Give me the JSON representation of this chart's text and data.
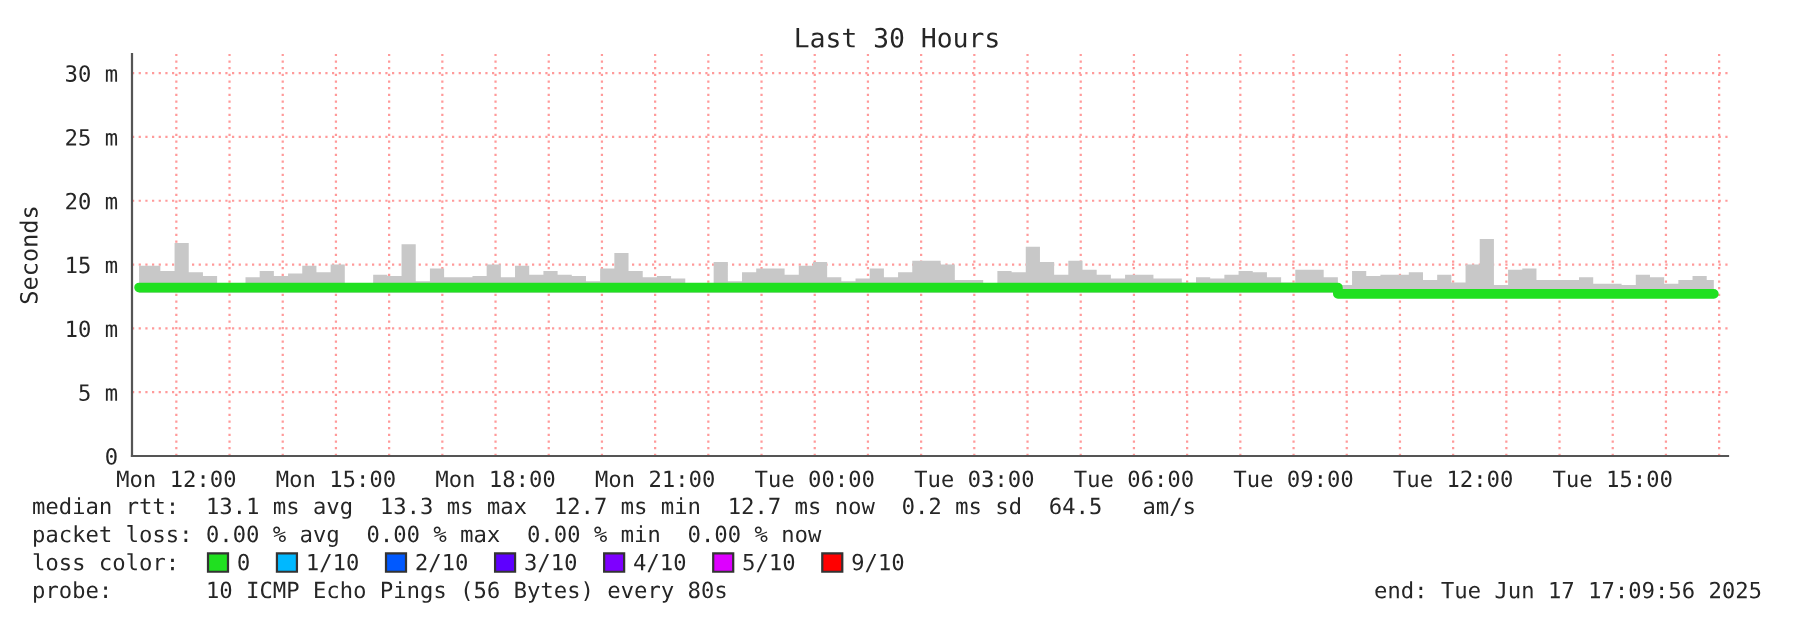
{
  "chart_data": {
    "type": "step",
    "title": "Last 30 Hours",
    "ylabel": "Seconds",
    "legend_title": "loss color:",
    "xlim": [
      "2025-06-16T11:10",
      "2025-06-17T17:10"
    ],
    "ylim": [
      0,
      31.5
    ],
    "xticks": [
      {
        "value": "2025-06-16T12:00",
        "label": "Mon 12:00"
      },
      {
        "value": "2025-06-16T13:00",
        "label": null
      },
      {
        "value": "2025-06-16T14:00",
        "label": null
      },
      {
        "value": "2025-06-16T15:00",
        "label": "Mon 15:00"
      },
      {
        "value": "2025-06-16T16:00",
        "label": null
      },
      {
        "value": "2025-06-16T17:00",
        "label": null
      },
      {
        "value": "2025-06-16T18:00",
        "label": "Mon 18:00"
      },
      {
        "value": "2025-06-16T19:00",
        "label": null
      },
      {
        "value": "2025-06-16T20:00",
        "label": null
      },
      {
        "value": "2025-06-16T21:00",
        "label": "Mon 21:00"
      },
      {
        "value": "2025-06-16T22:00",
        "label": null
      },
      {
        "value": "2025-06-16T23:00",
        "label": null
      },
      {
        "value": "2025-06-17T00:00",
        "label": "Tue 00:00"
      },
      {
        "value": "2025-06-17T01:00",
        "label": null
      },
      {
        "value": "2025-06-17T02:00",
        "label": null
      },
      {
        "value": "2025-06-17T03:00",
        "label": "Tue 03:00"
      },
      {
        "value": "2025-06-17T04:00",
        "label": null
      },
      {
        "value": "2025-06-17T05:00",
        "label": null
      },
      {
        "value": "2025-06-17T06:00",
        "label": "Tue 06:00"
      },
      {
        "value": "2025-06-17T07:00",
        "label": null
      },
      {
        "value": "2025-06-17T08:00",
        "label": null
      },
      {
        "value": "2025-06-17T09:00",
        "label": "Tue 09:00"
      },
      {
        "value": "2025-06-17T10:00",
        "label": null
      },
      {
        "value": "2025-06-17T11:00",
        "label": null
      },
      {
        "value": "2025-06-17T12:00",
        "label": "Tue 12:00"
      },
      {
        "value": "2025-06-17T13:00",
        "label": null
      },
      {
        "value": "2025-06-17T14:00",
        "label": null
      },
      {
        "value": "2025-06-17T15:00",
        "label": "Tue 15:00"
      },
      {
        "value": "2025-06-17T16:00",
        "label": null
      },
      {
        "value": "2025-06-17T17:00",
        "label": null
      }
    ],
    "yticks": [
      0,
      {
        "value": 5,
        "label": "5 m"
      },
      {
        "value": 10,
        "label": "10 m"
      },
      {
        "value": 15,
        "label": "15 m"
      },
      {
        "value": 20,
        "label": "20 m"
      },
      {
        "value": 25,
        "label": "25 m"
      },
      {
        "value": 30,
        "label": "30 m"
      }
    ],
    "grid": true,
    "legend": "bottom",
    "x": [
      "2025-06-16T11:18",
      "2025-06-16T11:34",
      "2025-06-16T11:50",
      "2025-06-16T12:06",
      "2025-06-16T12:22",
      "2025-06-16T12:38",
      "2025-06-16T12:54",
      "2025-06-16T13:10",
      "2025-06-16T13:26",
      "2025-06-16T13:42",
      "2025-06-16T13:58",
      "2025-06-16T14:14",
      "2025-06-16T14:30",
      "2025-06-16T14:46",
      "2025-06-16T15:02",
      "2025-06-16T15:18",
      "2025-06-16T15:34",
      "2025-06-16T15:50",
      "2025-06-16T16:06",
      "2025-06-16T16:22",
      "2025-06-16T16:38",
      "2025-06-16T16:54",
      "2025-06-16T17:10",
      "2025-06-16T17:26",
      "2025-06-16T17:42",
      "2025-06-16T17:58",
      "2025-06-16T18:14",
      "2025-06-16T18:30",
      "2025-06-16T18:46",
      "2025-06-16T19:02",
      "2025-06-16T19:18",
      "2025-06-16T19:34",
      "2025-06-16T19:50",
      "2025-06-16T20:06",
      "2025-06-16T20:22",
      "2025-06-16T20:38",
      "2025-06-16T20:54",
      "2025-06-16T21:10",
      "2025-06-16T21:26",
      "2025-06-16T21:42",
      "2025-06-16T21:58",
      "2025-06-16T22:14",
      "2025-06-16T22:30",
      "2025-06-16T22:46",
      "2025-06-16T23:02",
      "2025-06-16T23:18",
      "2025-06-16T23:34",
      "2025-06-16T23:50",
      "2025-06-17T00:06",
      "2025-06-17T00:22",
      "2025-06-17T00:38",
      "2025-06-17T00:54",
      "2025-06-17T01:10",
      "2025-06-17T01:26",
      "2025-06-17T01:42",
      "2025-06-17T01:58",
      "2025-06-17T02:14",
      "2025-06-17T02:30",
      "2025-06-17T02:46",
      "2025-06-17T03:02",
      "2025-06-17T03:18",
      "2025-06-17T03:34",
      "2025-06-17T03:50",
      "2025-06-17T04:06",
      "2025-06-17T04:22",
      "2025-06-17T04:38",
      "2025-06-17T04:54",
      "2025-06-17T05:10",
      "2025-06-17T05:26",
      "2025-06-17T05:42",
      "2025-06-17T05:58",
      "2025-06-17T06:14",
      "2025-06-17T06:30",
      "2025-06-17T06:46",
      "2025-06-17T07:02",
      "2025-06-17T07:18",
      "2025-06-17T07:34",
      "2025-06-17T07:50",
      "2025-06-17T08:06",
      "2025-06-17T08:22",
      "2025-06-17T08:38",
      "2025-06-17T08:54",
      "2025-06-17T09:10",
      "2025-06-17T09:26",
      "2025-06-17T09:42",
      "2025-06-17T09:58",
      "2025-06-17T10:14",
      "2025-06-17T10:30",
      "2025-06-17T10:46",
      "2025-06-17T11:02",
      "2025-06-17T11:18",
      "2025-06-17T11:34",
      "2025-06-17T11:50",
      "2025-06-17T12:06",
      "2025-06-17T12:22",
      "2025-06-17T12:38",
      "2025-06-17T12:54",
      "2025-06-17T13:10",
      "2025-06-17T13:26",
      "2025-06-17T13:42",
      "2025-06-17T13:58",
      "2025-06-17T14:14",
      "2025-06-17T14:30",
      "2025-06-17T14:46",
      "2025-06-17T15:02",
      "2025-06-17T15:18",
      "2025-06-17T15:34",
      "2025-06-17T15:50",
      "2025-06-17T16:06",
      "2025-06-17T16:22",
      "2025-06-17T16:38",
      "2025-06-17T16:54"
    ],
    "series": [
      {
        "name": "0",
        "color": "#20e020",
        "values": [
          13.2,
          13.2,
          13.2,
          13.2,
          13.2,
          13.2,
          13.2,
          13.2,
          13.2,
          13.2,
          13.2,
          13.2,
          13.2,
          13.2,
          13.2,
          13.2,
          13.2,
          13.2,
          13.2,
          13.2,
          13.2,
          13.2,
          13.2,
          13.2,
          13.2,
          13.2,
          13.2,
          13.2,
          13.2,
          13.2,
          13.2,
          13.2,
          13.2,
          13.2,
          13.2,
          13.2,
          13.2,
          13.2,
          13.2,
          13.2,
          13.2,
          13.2,
          13.2,
          13.2,
          13.2,
          13.2,
          13.2,
          13.2,
          13.2,
          13.2,
          13.2,
          13.2,
          13.2,
          13.2,
          13.2,
          13.2,
          13.2,
          13.2,
          13.2,
          13.2,
          13.2,
          13.2,
          13.2,
          13.2,
          13.2,
          13.2,
          13.2,
          13.2,
          13.2,
          13.2,
          13.2,
          13.2,
          13.2,
          13.2,
          13.2,
          13.2,
          13.2,
          13.2,
          13.2,
          13.2,
          13.2,
          13.2,
          13.2,
          13.2,
          13.2,
          12.7,
          12.7,
          12.7,
          12.7,
          12.7,
          12.7,
          12.7,
          12.7,
          12.7,
          12.7,
          12.7,
          12.7,
          12.7,
          12.7,
          12.7,
          12.7,
          12.7,
          12.7,
          12.7,
          12.7,
          12.7,
          12.7,
          12.7,
          12.7,
          12.7,
          12.7,
          12.7
        ],
        "lower": [
          12.8,
          12.8,
          12.8,
          12.8,
          12.8,
          12.8,
          12.8,
          12.8,
          12.8,
          12.8,
          12.8,
          12.8,
          12.8,
          12.8,
          12.8,
          12.8,
          12.8,
          12.8,
          12.8,
          12.8,
          12.8,
          12.8,
          12.8,
          12.8,
          12.8,
          12.8,
          12.8,
          12.8,
          12.8,
          12.8,
          12.8,
          12.8,
          12.8,
          12.8,
          12.8,
          12.8,
          12.8,
          12.8,
          12.8,
          12.8,
          12.8,
          12.8,
          12.8,
          12.8,
          12.8,
          12.8,
          12.8,
          12.8,
          12.8,
          12.8,
          12.8,
          12.8,
          12.8,
          12.8,
          12.8,
          12.8,
          12.8,
          12.8,
          12.8,
          12.8,
          12.8,
          12.8,
          12.8,
          12.8,
          12.8,
          12.8,
          12.8,
          12.8,
          12.8,
          12.8,
          12.8,
          12.8,
          12.8,
          12.8,
          12.8,
          12.8,
          12.8,
          12.8,
          12.8,
          12.8,
          12.8,
          12.8,
          12.8,
          12.8,
          12.8,
          12.5,
          12.5,
          12.5,
          12.5,
          12.5,
          12.5,
          12.5,
          12.5,
          12.5,
          12.5,
          12.5,
          12.5,
          12.5,
          12.5,
          12.5,
          12.5,
          12.5,
          12.5,
          12.5,
          12.5,
          12.5,
          12.5,
          12.5,
          12.5,
          12.5,
          12.5,
          12.5
        ],
        "upper": [
          14.9,
          14.9,
          14.5,
          16.7,
          14.4,
          14.1,
          13.5,
          13.5,
          14.0,
          14.5,
          14.1,
          14.3,
          14.9,
          14.4,
          15.0,
          13.4,
          13.4,
          14.2,
          14.1,
          16.6,
          13.7,
          14.7,
          14.0,
          14.0,
          14.1,
          15.0,
          14.0,
          14.9,
          14.2,
          14.5,
          14.2,
          14.1,
          13.7,
          14.7,
          15.9,
          14.5,
          14.0,
          14.1,
          13.9,
          13.4,
          13.4,
          15.2,
          13.7,
          14.4,
          14.7,
          14.7,
          14.2,
          14.9,
          15.2,
          14.0,
          13.7,
          13.9,
          14.7,
          14.0,
          14.4,
          15.3,
          15.3,
          15.0,
          13.8,
          13.8,
          13.4,
          14.5,
          14.4,
          16.4,
          15.2,
          14.2,
          15.3,
          14.6,
          14.2,
          13.9,
          14.2,
          14.2,
          13.9,
          13.9,
          13.6,
          14.0,
          13.9,
          14.2,
          14.5,
          14.4,
          14.0,
          13.6,
          14.6,
          14.6,
          14.0,
          13.4,
          14.5,
          14.1,
          14.2,
          14.2,
          14.4,
          13.8,
          14.2,
          13.6,
          15.0,
          17.0,
          13.4,
          14.6,
          14.7,
          13.8,
          13.8,
          13.8,
          14.0,
          13.5,
          13.5,
          13.4,
          14.2,
          14.0,
          13.5,
          13.8,
          14.1,
          13.8
        ]
      },
      {
        "name": "1/10",
        "color": "#00b8ff",
        "values": [
          null,
          null,
          null,
          null,
          null,
          null,
          null,
          null,
          null,
          null,
          null,
          null,
          null,
          null,
          null,
          null,
          null,
          null,
          null,
          null,
          null,
          null,
          null,
          null,
          null,
          null,
          null,
          null,
          null,
          null,
          null,
          null,
          null,
          null,
          null,
          null,
          null,
          null,
          null,
          null,
          null,
          null,
          null,
          null,
          null,
          null,
          null,
          null,
          null,
          null,
          null,
          null,
          null,
          null,
          null,
          null,
          null,
          null,
          null,
          null,
          null,
          null,
          null,
          null,
          null,
          null,
          null,
          null,
          null,
          null,
          null,
          null,
          null,
          null,
          null,
          null,
          null,
          null,
          null,
          null,
          null,
          null,
          null,
          null,
          null,
          null,
          null,
          null,
          null,
          null,
          null,
          null,
          null,
          null,
          null,
          null,
          null,
          null,
          null,
          null,
          null,
          null,
          null,
          null,
          null,
          null,
          null,
          null,
          null,
          null,
          null,
          null
        ]
      },
      {
        "name": "2/10",
        "color": "#0059ff",
        "values": [
          null,
          null,
          null,
          null,
          null,
          null,
          null,
          null,
          null,
          null,
          null,
          null,
          null,
          null,
          null,
          null,
          null,
          null,
          null,
          null,
          null,
          null,
          null,
          null,
          null,
          null,
          null,
          null,
          null,
          null,
          null,
          null,
          null,
          null,
          null,
          null,
          null,
          null,
          null,
          null,
          null,
          null,
          null,
          null,
          null,
          null,
          null,
          null,
          null,
          null,
          null,
          null,
          null,
          null,
          null,
          null,
          null,
          null,
          null,
          null,
          null,
          null,
          null,
          null,
          null,
          null,
          null,
          null,
          null,
          null,
          null,
          null,
          null,
          null,
          null,
          null,
          null,
          null,
          null,
          null,
          null,
          null,
          null,
          null,
          null,
          null,
          null,
          null,
          null,
          null,
          null,
          null,
          null,
          null,
          null,
          null,
          null,
          null,
          null,
          null,
          null,
          null,
          null,
          null,
          null,
          null,
          null,
          null,
          null,
          null,
          null,
          null
        ]
      },
      {
        "name": "3/10",
        "color": "#5e00ff",
        "values": [
          null,
          null,
          null,
          null,
          null,
          null,
          null,
          null,
          null,
          null,
          null,
          null,
          null,
          null,
          null,
          null,
          null,
          null,
          null,
          null,
          null,
          null,
          null,
          null,
          null,
          null,
          null,
          null,
          null,
          null,
          null,
          null,
          null,
          null,
          null,
          null,
          null,
          null,
          null,
          null,
          null,
          null,
          null,
          null,
          null,
          null,
          null,
          null,
          null,
          null,
          null,
          null,
          null,
          null,
          null,
          null,
          null,
          null,
          null,
          null,
          null,
          null,
          null,
          null,
          null,
          null,
          null,
          null,
          null,
          null,
          null,
          null,
          null,
          null,
          null,
          null,
          null,
          null,
          null,
          null,
          null,
          null,
          null,
          null,
          null,
          null,
          null,
          null,
          null,
          null,
          null,
          null,
          null,
          null,
          null,
          null,
          null,
          null,
          null,
          null,
          null,
          null,
          null,
          null,
          null,
          null,
          null,
          null,
          null,
          null,
          null,
          null
        ]
      },
      {
        "name": "4/10",
        "color": "#7e00ff",
        "values": [
          null,
          null,
          null,
          null,
          null,
          null,
          null,
          null,
          null,
          null,
          null,
          null,
          null,
          null,
          null,
          null,
          null,
          null,
          null,
          null,
          null,
          null,
          null,
          null,
          null,
          null,
          null,
          null,
          null,
          null,
          null,
          null,
          null,
          null,
          null,
          null,
          null,
          null,
          null,
          null,
          null,
          null,
          null,
          null,
          null,
          null,
          null,
          null,
          null,
          null,
          null,
          null,
          null,
          null,
          null,
          null,
          null,
          null,
          null,
          null,
          null,
          null,
          null,
          null,
          null,
          null,
          null,
          null,
          null,
          null,
          null,
          null,
          null,
          null,
          null,
          null,
          null,
          null,
          null,
          null,
          null,
          null,
          null,
          null,
          null,
          null,
          null,
          null,
          null,
          null,
          null,
          null,
          null,
          null,
          null,
          null,
          null,
          null,
          null,
          null,
          null,
          null,
          null,
          null,
          null,
          null,
          null,
          null,
          null,
          null,
          null,
          null
        ]
      },
      {
        "name": "5/10",
        "color": "#dd00ff",
        "values": [
          null,
          null,
          null,
          null,
          null,
          null,
          null,
          null,
          null,
          null,
          null,
          null,
          null,
          null,
          null,
          null,
          null,
          null,
          null,
          null,
          null,
          null,
          null,
          null,
          null,
          null,
          null,
          null,
          null,
          null,
          null,
          null,
          null,
          null,
          null,
          null,
          null,
          null,
          null,
          null,
          null,
          null,
          null,
          null,
          null,
          null,
          null,
          null,
          null,
          null,
          null,
          null,
          null,
          null,
          null,
          null,
          null,
          null,
          null,
          null,
          null,
          null,
          null,
          null,
          null,
          null,
          null,
          null,
          null,
          null,
          null,
          null,
          null,
          null,
          null,
          null,
          null,
          null,
          null,
          null,
          null,
          null,
          null,
          null,
          null,
          null,
          null,
          null,
          null,
          null,
          null,
          null,
          null,
          null,
          null,
          null,
          null,
          null,
          null,
          null,
          null,
          null,
          null,
          null,
          null,
          null,
          null,
          null,
          null,
          null,
          null,
          null
        ]
      },
      {
        "name": "9/10",
        "color": "#ff0000",
        "values": [
          null,
          null,
          null,
          null,
          null,
          null,
          null,
          null,
          null,
          null,
          null,
          null,
          null,
          null,
          null,
          null,
          null,
          null,
          null,
          null,
          null,
          null,
          null,
          null,
          null,
          null,
          null,
          null,
          null,
          null,
          null,
          null,
          null,
          null,
          null,
          null,
          null,
          null,
          null,
          null,
          null,
          null,
          null,
          null,
          null,
          null,
          null,
          null,
          null,
          null,
          null,
          null,
          null,
          null,
          null,
          null,
          null,
          null,
          null,
          null,
          null,
          null,
          null,
          null,
          null,
          null,
          null,
          null,
          null,
          null,
          null,
          null,
          null,
          null,
          null,
          null,
          null,
          null,
          null,
          null,
          null,
          null,
          null,
          null,
          null,
          null,
          null,
          null,
          null,
          null,
          null,
          null,
          null,
          null,
          null,
          null,
          null,
          null,
          null,
          null,
          null,
          null,
          null,
          null,
          null,
          null,
          null,
          null,
          null,
          null,
          null,
          null
        ]
      }
    ],
    "annotations": [
      "median rtt:  13.1 ms avg  13.3 ms max  12.7 ms min  12.7 ms now  0.2 ms sd  64.5   am/s",
      "packet loss: 0.00 % avg  0.00 % max  0.00 % min  0.00 % now",
      "probe:       10 ICMP Echo Pings (56 Bytes) every 80s",
      "end: Tue Jun 17 17:09:56 2025"
    ]
  }
}
